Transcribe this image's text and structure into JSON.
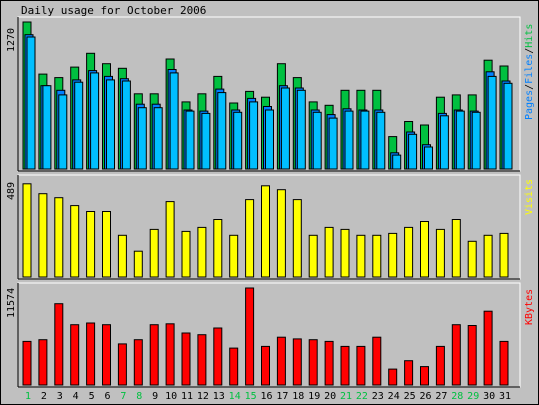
{
  "chart_data": [
    {
      "type": "bar",
      "title": "Daily usage for October 2006",
      "ylabel_parts": [
        {
          "text": "Pages",
          "color": "#0080ff"
        },
        {
          "text": "/",
          "color": "#000000"
        },
        {
          "text": "Files",
          "color": "#0080ff"
        },
        {
          "text": "/",
          "color": "#000000"
        },
        {
          "text": "Hits",
          "color": "#00c040"
        }
      ],
      "y_axis_label": "1270",
      "ylim": [
        0,
        1270
      ],
      "categories": [
        "1",
        "2",
        "3",
        "4",
        "5",
        "6",
        "7",
        "8",
        "9",
        "10",
        "11",
        "12",
        "13",
        "14",
        "15",
        "16",
        "17",
        "18",
        "19",
        "20",
        "21",
        "22",
        "23",
        "24",
        "25",
        "26",
        "27",
        "28",
        "29",
        "30",
        "31"
      ],
      "weekend_days": [
        "1",
        "7",
        "8",
        "14",
        "15",
        "21",
        "22",
        "28",
        "29"
      ],
      "series": [
        {
          "name": "Hits",
          "color": "#00c040",
          "values": [
            1270,
            820,
            790,
            880,
            1000,
            910,
            870,
            650,
            650,
            950,
            580,
            650,
            800,
            570,
            670,
            620,
            910,
            790,
            580,
            550,
            680,
            680,
            680,
            280,
            410,
            380,
            620,
            640,
            640,
            940,
            890
          ]
        },
        {
          "name": "Files",
          "color": "#0080ff",
          "values": [
            1160,
            720,
            680,
            770,
            850,
            800,
            780,
            560,
            560,
            860,
            510,
            500,
            690,
            510,
            610,
            540,
            720,
            700,
            510,
            470,
            520,
            510,
            510,
            140,
            320,
            210,
            480,
            510,
            500,
            840,
            760
          ]
        },
        {
          "name": "Pages",
          "color": "#00bfff",
          "values": [
            1140,
            720,
            640,
            750,
            830,
            770,
            760,
            530,
            530,
            830,
            500,
            480,
            660,
            490,
            580,
            510,
            700,
            680,
            490,
            440,
            500,
            500,
            490,
            120,
            300,
            190,
            460,
            500,
            490,
            800,
            740
          ]
        }
      ]
    },
    {
      "type": "bar",
      "ylabel": "Visits",
      "ylabel_color": "#ffff00",
      "y_axis_label": "489",
      "ylim": [
        0,
        489
      ],
      "categories": [
        "1",
        "2",
        "3",
        "4",
        "5",
        "6",
        "7",
        "8",
        "9",
        "10",
        "11",
        "12",
        "13",
        "14",
        "15",
        "16",
        "17",
        "18",
        "19",
        "20",
        "21",
        "22",
        "23",
        "24",
        "25",
        "26",
        "27",
        "28",
        "29",
        "30",
        "31"
      ],
      "series": [
        {
          "name": "Visits",
          "color": "#ffff00",
          "values": [
            470,
            420,
            400,
            360,
            330,
            330,
            210,
            130,
            240,
            380,
            230,
            250,
            290,
            210,
            390,
            460,
            440,
            390,
            210,
            250,
            240,
            210,
            210,
            220,
            250,
            280,
            240,
            290,
            180,
            210,
            220
          ]
        }
      ]
    },
    {
      "type": "bar",
      "ylabel": "KBytes",
      "ylabel_color": "#ff0000",
      "y_axis_label": "11574",
      "ylim": [
        0,
        11574
      ],
      "categories": [
        "1",
        "2",
        "3",
        "4",
        "5",
        "6",
        "7",
        "8",
        "9",
        "10",
        "11",
        "12",
        "13",
        "14",
        "15",
        "16",
        "17",
        "18",
        "19",
        "20",
        "21",
        "22",
        "23",
        "24",
        "25",
        "26",
        "27",
        "28",
        "29",
        "30",
        "31"
      ],
      "series": [
        {
          "name": "KBytes",
          "color": "#ff0000",
          "values": [
            5200,
            5400,
            9700,
            7200,
            7400,
            7200,
            4900,
            5400,
            7200,
            7300,
            6200,
            6000,
            6800,
            4400,
            11574,
            4600,
            5700,
            5500,
            5400,
            5200,
            4600,
            4600,
            5700,
            1900,
            2900,
            2200,
            4600,
            7200,
            7100,
            8800,
            5200
          ]
        }
      ]
    }
  ]
}
